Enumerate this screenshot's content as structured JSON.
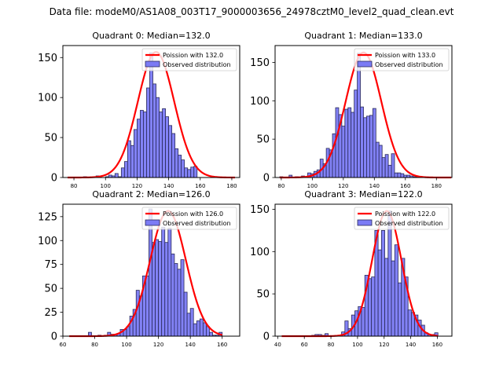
{
  "suptitle": "Data file: modeM0/AS1A08_003T17_9000003656_24978cztM0_level2_quad_clean.evt",
  "colors": {
    "bar_fill": "#7b7bf5",
    "bar_edge": "#2a2a5a",
    "poisson_line": "#ff0000"
  },
  "chart_data": [
    {
      "type": "bar",
      "title": "Quadrant 0: Median=132.0",
      "legend": [
        "Poission with 132.0",
        "Observed distribution"
      ],
      "legend_position": "top-right",
      "xlim": [
        73,
        185
      ],
      "ylim": [
        0,
        165
      ],
      "xticks": [
        80,
        100,
        120,
        140,
        160,
        180
      ],
      "yticks": [
        0,
        50,
        100,
        150
      ],
      "bin_width": 2,
      "bin_start": 76,
      "values": [
        0,
        0,
        0,
        0,
        0,
        1,
        0,
        0,
        0,
        2,
        0,
        0,
        1,
        3,
        2,
        5,
        1,
        12,
        20,
        46,
        40,
        60,
        73,
        84,
        82,
        112,
        156,
        117,
        100,
        82,
        86,
        76,
        65,
        55,
        36,
        28,
        22,
        12,
        10,
        13,
        14,
        0,
        0,
        0,
        0,
        0,
        0,
        0,
        0,
        0,
        0,
        0,
        0
      ],
      "poisson_mean": 132.0,
      "poisson_peak": 157
    },
    {
      "type": "bar",
      "title": "Quadrant 1: Median=133.0",
      "legend": [
        "Poission with 133.0",
        "Observed distribution"
      ],
      "legend_position": "top-right",
      "xlim": [
        76,
        190
      ],
      "ylim": [
        0,
        172
      ],
      "xticks": [
        80,
        100,
        120,
        140,
        160,
        180
      ],
      "yticks": [
        0,
        50,
        100,
        150
      ],
      "bin_width": 2,
      "bin_start": 79,
      "values": [
        1,
        0,
        0,
        3,
        0,
        1,
        0,
        2,
        0,
        6,
        5,
        8,
        10,
        24,
        18,
        38,
        36,
        57,
        91,
        82,
        67,
        89,
        91,
        85,
        114,
        162,
        92,
        78,
        80,
        81,
        90,
        46,
        42,
        26,
        30,
        16,
        31,
        6,
        6,
        5,
        3,
        3,
        2,
        1,
        1,
        0,
        0,
        0,
        0,
        0,
        0,
        0,
        0,
        0,
        0,
        0,
        0
      ],
      "poisson_mean": 133.0,
      "poisson_peak": 163
    },
    {
      "type": "bar",
      "title": "Quadrant 2: Median=126.0",
      "legend": [
        "Poission with 126.0",
        "Observed distribution"
      ],
      "legend_position": "top-right",
      "xlim": [
        60,
        171
      ],
      "ylim": [
        0,
        138
      ],
      "xticks": [
        60,
        80,
        100,
        120,
        140,
        160
      ],
      "yticks": [
        0,
        25,
        50,
        75,
        100,
        125
      ],
      "bin_width": 2,
      "bin_start": 64,
      "values": [
        0,
        0,
        0,
        0,
        0,
        0,
        4,
        0,
        0,
        1,
        0,
        1,
        4,
        2,
        2,
        3,
        7,
        7,
        10,
        21,
        28,
        48,
        42,
        63,
        63,
        133,
        98,
        101,
        99,
        114,
        98,
        113,
        86,
        76,
        70,
        80,
        46,
        24,
        29,
        13,
        16,
        18,
        14,
        10,
        4,
        1,
        1,
        4
      ],
      "poisson_mean": 126.0,
      "poisson_peak": 131
    },
    {
      "type": "bar",
      "title": "Quadrant 3: Median=122.0",
      "legend": [
        "Poission with 122.0",
        "Observed distribution"
      ],
      "legend_position": "top-right",
      "xlim": [
        38,
        171
      ],
      "ylim": [
        0,
        156
      ],
      "xticks": [
        40,
        60,
        80,
        100,
        120,
        140,
        160
      ],
      "yticks": [
        0,
        50,
        100,
        150
      ],
      "bin_width": 2.5,
      "bin_start": 43,
      "values": [
        0,
        0,
        0,
        0,
        0,
        0,
        0,
        0,
        0,
        1,
        2,
        2,
        1,
        3,
        0,
        0,
        1,
        1,
        5,
        18,
        9,
        25,
        30,
        35,
        34,
        72,
        68,
        70,
        125,
        102,
        125,
        92,
        148,
        89,
        108,
        63,
        92,
        70,
        31,
        28,
        25,
        19,
        13,
        4,
        2,
        2,
        4
      ],
      "poisson_mean": 122.0,
      "poisson_peak": 148
    }
  ]
}
